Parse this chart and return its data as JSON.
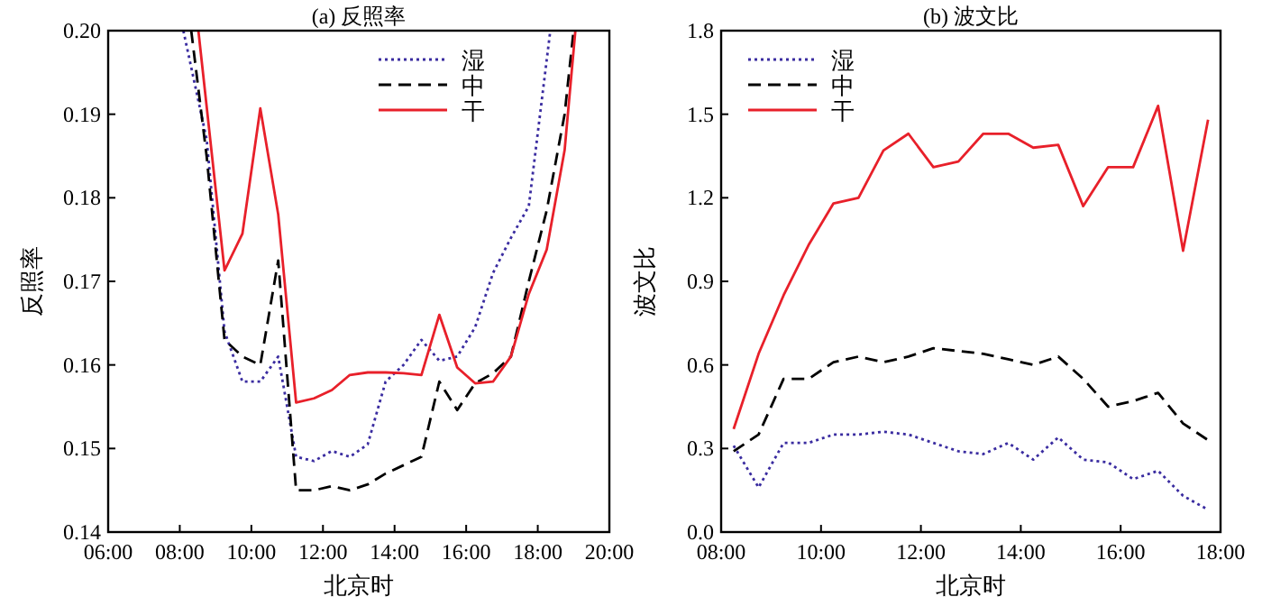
{
  "chart_data": [
    {
      "type": "line",
      "title": "(a) 反照率",
      "xlabel": "北京时",
      "ylabel": "反照率",
      "xlim": [
        6,
        20
      ],
      "ylim": [
        0.14,
        0.2
      ],
      "xticks": [
        {
          "value": 6,
          "label": "06:00"
        },
        {
          "value": 8,
          "label": "08:00"
        },
        {
          "value": 10,
          "label": "10:00"
        },
        {
          "value": 12,
          "label": "12:00"
        },
        {
          "value": 14,
          "label": "14:00"
        },
        {
          "value": 16,
          "label": "16:00"
        },
        {
          "value": 18,
          "label": "18:00"
        },
        {
          "value": 20,
          "label": "20:00"
        }
      ],
      "yticks": [
        0.14,
        0.15,
        0.16,
        0.17,
        0.18,
        0.19,
        {
          "value": 0.2,
          "label": "0.20"
        }
      ],
      "legend": "top right",
      "grid": false,
      "series": [
        {
          "name": "湿",
          "color": "#3a2ca0",
          "line_style": "dotted",
          "x": [
            8.1,
            8.75,
            9.25,
            9.75,
            10.25,
            10.75,
            11.25,
            11.75,
            12.25,
            12.75,
            13.25,
            13.75,
            14.25,
            14.75,
            15.25,
            15.75,
            16.25,
            16.75,
            17.25,
            17.75,
            18.35
          ],
          "values": [
            0.2,
            0.187,
            0.164,
            0.158,
            0.158,
            0.161,
            0.149,
            0.1485,
            0.1497,
            0.149,
            0.1505,
            0.158,
            0.16,
            0.163,
            0.1605,
            0.161,
            0.1645,
            0.171,
            0.1752,
            0.179,
            0.2
          ]
        },
        {
          "name": "中",
          "color": "#000000",
          "line_style": "dashed",
          "x": [
            8.32,
            8.75,
            9.25,
            9.75,
            10.25,
            10.75,
            11.25,
            11.75,
            12.25,
            12.75,
            13.25,
            13.75,
            14.25,
            14.75,
            15.25,
            15.75,
            16.25,
            16.75,
            17.25,
            17.75,
            18.25,
            18.75,
            19.0
          ],
          "values": [
            0.2,
            0.185,
            0.163,
            0.161,
            0.16,
            0.1725,
            0.145,
            0.145,
            0.1455,
            0.145,
            0.1457,
            0.147,
            0.148,
            0.149,
            0.158,
            0.1546,
            0.1578,
            0.159,
            0.161,
            0.17,
            0.1785,
            0.19,
            0.2
          ]
        },
        {
          "name": "干",
          "color": "#e8202a",
          "line_style": "solid",
          "x": [
            8.52,
            9.25,
            9.75,
            10.25,
            10.75,
            11.25,
            11.75,
            12.25,
            12.75,
            13.25,
            13.75,
            14.25,
            14.75,
            15.25,
            15.75,
            16.25,
            16.75,
            17.25,
            17.75,
            18.25,
            18.75,
            19.05
          ],
          "values": [
            0.2,
            0.1713,
            0.1757,
            0.1907,
            0.178,
            0.1555,
            0.156,
            0.157,
            0.1588,
            0.1591,
            0.1591,
            0.159,
            0.1588,
            0.166,
            0.1597,
            0.1578,
            0.158,
            0.161,
            0.1685,
            0.1738,
            0.1857,
            0.2
          ]
        }
      ]
    },
    {
      "type": "line",
      "title": "(b) 波文比",
      "xlabel": "北京时",
      "ylabel": "波文比",
      "xlim": [
        8,
        18
      ],
      "ylim": [
        0,
        1.8
      ],
      "xticks": [
        {
          "value": 8,
          "label": "08:00"
        },
        {
          "value": 10,
          "label": "10:00"
        },
        {
          "value": 12,
          "label": "12:00"
        },
        {
          "value": 14,
          "label": "14:00"
        },
        {
          "value": 16,
          "label": "16:00"
        },
        {
          "value": 18,
          "label": "18:00"
        }
      ],
      "yticks": [
        {
          "value": 0,
          "label": "0.0"
        },
        0.3,
        0.6,
        0.9,
        1.2,
        1.5,
        1.8
      ],
      "legend": "top left",
      "grid": false,
      "x": [
        8.25,
        8.75,
        9.25,
        9.75,
        10.25,
        10.75,
        11.25,
        11.75,
        12.25,
        12.75,
        13.25,
        13.75,
        14.25,
        14.75,
        15.25,
        15.75,
        16.25,
        16.75,
        17.25,
        17.75
      ],
      "series": [
        {
          "name": "湿",
          "color": "#3a2ca0",
          "line_style": "dotted",
          "values": [
            0.31,
            0.16,
            0.32,
            0.32,
            0.35,
            0.35,
            0.36,
            0.35,
            0.32,
            0.29,
            0.28,
            0.32,
            0.26,
            0.34,
            0.26,
            0.25,
            0.19,
            0.22,
            0.13,
            0.08
          ]
        },
        {
          "name": "中",
          "color": "#000000",
          "line_style": "dashed",
          "values": [
            0.29,
            0.35,
            0.55,
            0.55,
            0.61,
            0.63,
            0.61,
            0.63,
            0.66,
            0.65,
            0.64,
            0.62,
            0.6,
            0.63,
            0.55,
            0.45,
            0.47,
            0.5,
            0.39,
            0.33
          ]
        },
        {
          "name": "干",
          "color": "#e8202a",
          "line_style": "solid",
          "values": [
            0.37,
            0.64,
            0.85,
            1.03,
            1.18,
            1.2,
            1.37,
            1.43,
            1.31,
            1.33,
            1.43,
            1.43,
            1.38,
            1.39,
            1.17,
            1.31,
            1.31,
            1.53,
            1.01,
            1.48
          ]
        }
      ]
    }
  ]
}
